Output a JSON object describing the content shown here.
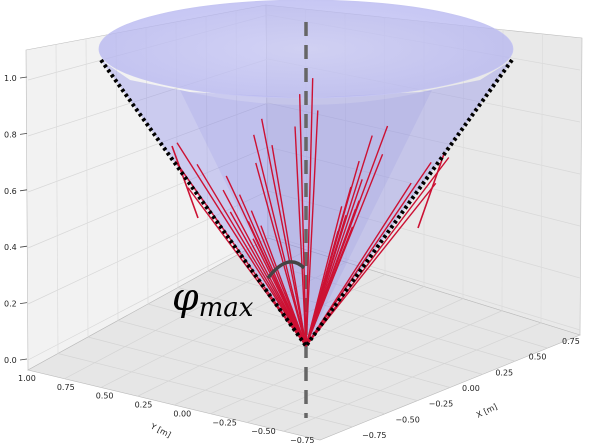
{
  "chart_data": {
    "type": "3d-cone",
    "z_ticks": [
      "0.0",
      "0.2",
      "0.4",
      "0.6",
      "0.8",
      "1.0"
    ],
    "y_ticks": [
      "1.00",
      "0.75",
      "0.50",
      "0.25",
      "0.00",
      "−0.25",
      "−0.50",
      "−0.75"
    ],
    "x_ticks": [
      "−0.75",
      "−0.50",
      "−0.25",
      "0.00",
      "0.25",
      "0.50",
      "0.75"
    ],
    "ylabel": "Y [m]",
    "xlabel": "X [m]",
    "zlim": [
      0,
      1.0
    ],
    "xlim": [
      -1.0,
      1.0
    ],
    "ylim": [
      -1.0,
      1.0
    ],
    "cone": {
      "apex_z": 0.0,
      "top_z": 1.0,
      "top_radius": 1.0,
      "color": "#5a5ae6"
    },
    "annotation": {
      "symbol": "φ",
      "subscript": "max"
    },
    "vectors": {
      "count": 13,
      "color": "#cc1133",
      "side_segments": 2
    },
    "colors": {
      "vector": "#cc1133",
      "boundary": "#000000",
      "axis_dash": "#666666",
      "arc": "#444444",
      "cone_fill": "#8080ee"
    }
  }
}
